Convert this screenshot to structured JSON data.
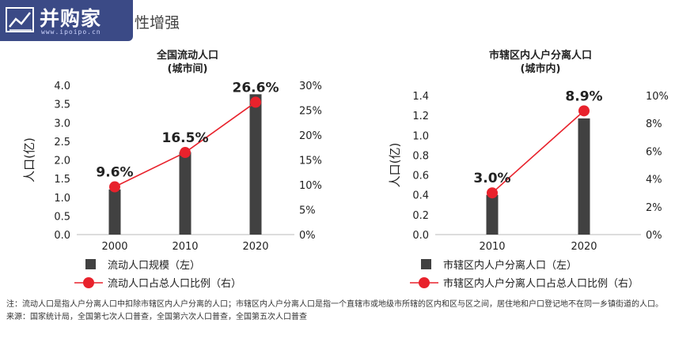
{
  "logo": {
    "name": "并购家",
    "url": "www.ipoipo.cn"
  },
  "page_heading": "性增强",
  "colors": {
    "bar": "#414141",
    "line": "#e8222c",
    "logo_bg": "#3b4a86"
  },
  "chart_data": [
    {
      "type": "bar+line",
      "title": "全国流动人口",
      "subtitle": "(城市间)",
      "categories": [
        "2000",
        "2010",
        "2020"
      ],
      "ylabel": "人口(亿)",
      "ylim": [
        0,
        4.0
      ],
      "yticks": [
        "0.0",
        "0.5",
        "1.0",
        "1.5",
        "2.0",
        "2.5",
        "3.0",
        "3.5",
        "4.0"
      ],
      "y2lim": [
        0,
        30
      ],
      "y2ticks": [
        "0%",
        "5%",
        "10%",
        "15%",
        "20%",
        "25%",
        "30%"
      ],
      "series": [
        {
          "name": "流动人口规模（左）",
          "kind": "bar",
          "axis": "left",
          "values": [
            1.21,
            2.21,
            3.76
          ]
        },
        {
          "name": "流动人口占总人口比例（右）",
          "kind": "line",
          "axis": "right",
          "values": [
            9.6,
            16.5,
            26.6
          ],
          "labels": [
            "9.6%",
            "16.5%",
            "26.6%"
          ]
        }
      ]
    },
    {
      "type": "bar+line",
      "title": "市辖区内人户分离人口",
      "subtitle": "(城市内)",
      "categories": [
        "2010",
        "2020"
      ],
      "ylabel": "人口(亿)",
      "ylim": [
        0,
        1.4
      ],
      "yticks": [
        "0.0",
        "0.2",
        "0.4",
        "0.6",
        "0.8",
        "1.0",
        "1.2",
        "1.4"
      ],
      "y2lim": [
        0,
        10
      ],
      "y2ticks": [
        "0%",
        "2%",
        "4%",
        "6%",
        "8%",
        "10%"
      ],
      "series": [
        {
          "name": "市辖区内人户分离人口（左）",
          "kind": "bar",
          "axis": "left",
          "values": [
            0.4,
            1.17
          ]
        },
        {
          "name": "市辖区内人户分离人口占总人口比例（右）",
          "kind": "line",
          "axis": "right",
          "values": [
            3.0,
            8.9
          ],
          "labels": [
            "3.0%",
            "8.9%"
          ]
        }
      ]
    }
  ],
  "note": "注：流动人口是指人户分离人口中扣除市辖区内人户分离的人口；市辖区内人户分离人口是指一个直辖市或地级市所辖的区内和区与区之间，居住地和户口登记地不在同一乡镇街道的人口。",
  "source": "来源：国家统计局，全国第七次人口普查，全国第六次人口普查，全国第五次人口普查"
}
